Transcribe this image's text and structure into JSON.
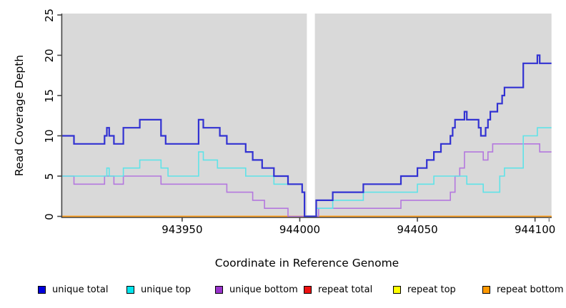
{
  "figure": {
    "xlabel": "Coordinate in Reference Genome",
    "ylabel": "Read Coverage Depth"
  },
  "legend": {
    "items": [
      {
        "label": "unique total",
        "color": "#0000dd"
      },
      {
        "label": "unique top",
        "color": "#00e5ee"
      },
      {
        "label": "unique bottom",
        "color": "#9933cc"
      },
      {
        "label": "repeat total",
        "color": "#ee1111"
      },
      {
        "label": "repeat top",
        "color": "#ffff00"
      },
      {
        "label": "repeat bottom",
        "color": "#ff9900"
      }
    ]
  },
  "chart_data": {
    "type": "line",
    "subtype": "step-after-coverage",
    "title": "",
    "xlabel": "Coordinate in Reference Genome",
    "ylabel": "Read Coverage Depth",
    "x_domain": [
      943899,
      944107
    ],
    "ylim": [
      0,
      25
    ],
    "x_ticks": [
      943950,
      944000,
      944050,
      944100
    ],
    "x_end_tick": 944106,
    "y_ticks": [
      0,
      5,
      10,
      15,
      20,
      25
    ],
    "grid": "off",
    "legend_position": "bottom",
    "plot_bg": "#d9d9d9",
    "gap_region": {
      "x_start": 944003,
      "x_end": 944006.4
    },
    "series": [
      {
        "name": "repeat total",
        "color": "#cc0000",
        "width": 1.8,
        "points": [
          [
            943899,
            0
          ]
        ]
      },
      {
        "name": "repeat top",
        "color": "#ffff00",
        "width": 1.8,
        "points": [
          [
            943899,
            0
          ]
        ]
      },
      {
        "name": "repeat bottom",
        "color": "#ffa020",
        "width": 2,
        "points": [
          [
            943899,
            0
          ]
        ]
      },
      {
        "name": "unique bottom",
        "color": "#b478de",
        "width": 1.6,
        "points": [
          [
            943899,
            5
          ],
          [
            943904,
            4
          ],
          [
            943917,
            5
          ],
          [
            943921,
            4
          ],
          [
            943925,
            5
          ],
          [
            943941,
            4
          ],
          [
            943969,
            3
          ],
          [
            943980,
            2
          ],
          [
            943985,
            1
          ],
          [
            943995,
            0
          ],
          [
            944008,
            1
          ],
          [
            944043,
            2
          ],
          [
            944064,
            3
          ],
          [
            944066,
            5
          ],
          [
            944068,
            6
          ],
          [
            944070,
            8
          ],
          [
            944078,
            7
          ],
          [
            944080,
            8
          ],
          [
            944082,
            9
          ],
          [
            944102,
            8
          ]
        ]
      },
      {
        "name": "unique top",
        "color": "#5fe3e8",
        "width": 1.6,
        "points": [
          [
            943899,
            5
          ],
          [
            943918,
            6
          ],
          [
            943919,
            5
          ],
          [
            943925,
            6
          ],
          [
            943932,
            7
          ],
          [
            943941,
            6
          ],
          [
            943944,
            5
          ],
          [
            943957,
            8
          ],
          [
            943959,
            7
          ],
          [
            943965,
            6
          ],
          [
            943977,
            5
          ],
          [
            943989,
            4
          ],
          [
            944001,
            3
          ],
          [
            944002,
            0
          ],
          [
            944007,
            1
          ],
          [
            944014,
            2
          ],
          [
            944027,
            3
          ],
          [
            944050,
            4
          ],
          [
            944057,
            5
          ],
          [
            944071,
            4
          ],
          [
            944078,
            3
          ],
          [
            944085,
            5
          ],
          [
            944087,
            6
          ],
          [
            944095,
            10
          ],
          [
            944101,
            11
          ]
        ]
      },
      {
        "name": "unique total",
        "color": "#3232d2",
        "width": 2.2,
        "points": [
          [
            943899,
            10
          ],
          [
            943904,
            9
          ],
          [
            943917,
            10
          ],
          [
            943918,
            11
          ],
          [
            943919,
            10
          ],
          [
            943921,
            9
          ],
          [
            943925,
            11
          ],
          [
            943932,
            12
          ],
          [
            943941,
            10
          ],
          [
            943943,
            9
          ],
          [
            943957,
            12
          ],
          [
            943959,
            11
          ],
          [
            943966,
            10
          ],
          [
            943969,
            9
          ],
          [
            943977,
            8
          ],
          [
            943980,
            7
          ],
          [
            943984,
            6
          ],
          [
            943989,
            5
          ],
          [
            943995,
            4
          ],
          [
            944001,
            3
          ],
          [
            944002,
            0
          ],
          [
            944007,
            2
          ],
          [
            944014,
            3
          ],
          [
            944027,
            4
          ],
          [
            944043,
            5
          ],
          [
            944050,
            6
          ],
          [
            944054,
            7
          ],
          [
            944057,
            8
          ],
          [
            944060,
            9
          ],
          [
            944064,
            10
          ],
          [
            944065,
            11
          ],
          [
            944066,
            12
          ],
          [
            944070,
            13
          ],
          [
            944071,
            12
          ],
          [
            944076,
            11
          ],
          [
            944077,
            10
          ],
          [
            944079,
            11
          ],
          [
            944080,
            12
          ],
          [
            944081,
            13
          ],
          [
            944084,
            14
          ],
          [
            944086,
            15
          ],
          [
            944087,
            16
          ],
          [
            944095,
            19
          ],
          [
            944101,
            20
          ],
          [
            944102,
            19
          ]
        ]
      }
    ]
  }
}
